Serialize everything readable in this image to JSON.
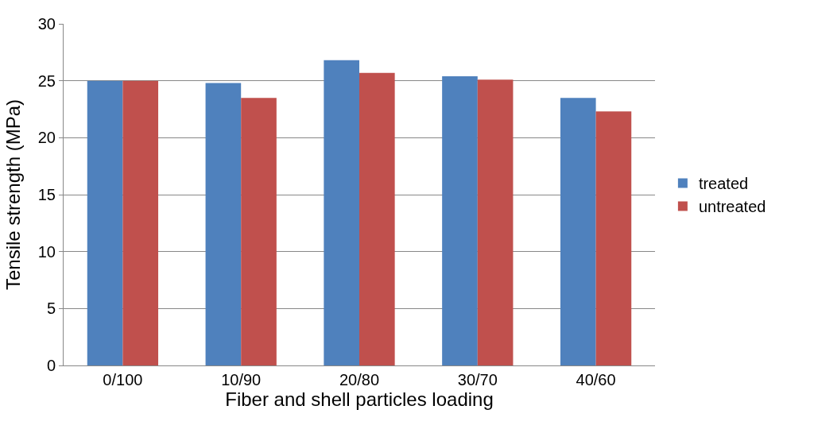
{
  "chart_data": {
    "type": "bar",
    "xlabel": "Fiber and shell particles loading",
    "ylabel": "Tensile strength (MPa)",
    "categories": [
      "0/100",
      "10/90",
      "20/80",
      "30/70",
      "40/60"
    ],
    "series": [
      {
        "name": "treated",
        "color": "#4f81bd",
        "values": [
          25.0,
          24.8,
          26.8,
          25.4,
          23.5
        ]
      },
      {
        "name": "untreated",
        "color": "#c0504d",
        "values": [
          25.0,
          23.5,
          25.7,
          25.1,
          22.3
        ]
      }
    ],
    "ylim": [
      0,
      30
    ],
    "yticks": [
      0,
      5,
      10,
      15,
      20,
      25,
      30
    ],
    "grid": "y",
    "legend": "right"
  }
}
